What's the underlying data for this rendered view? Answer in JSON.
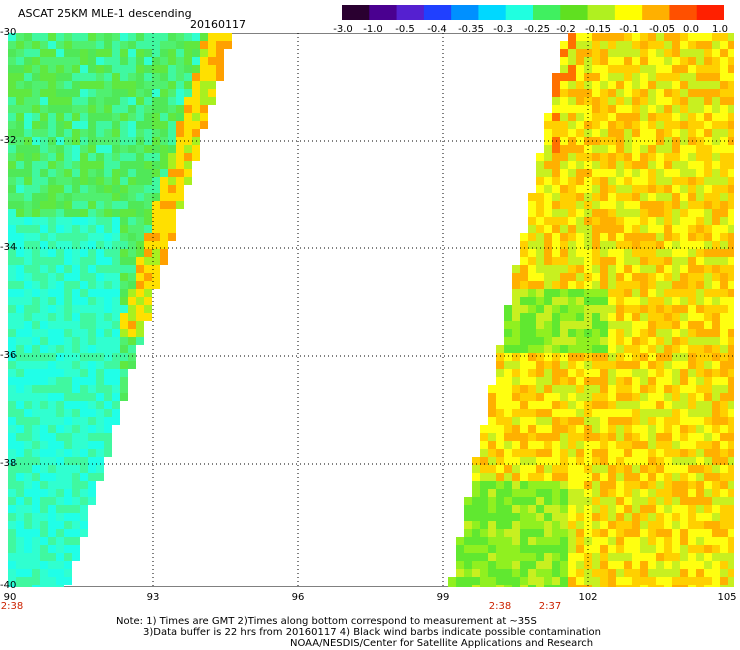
{
  "header": {
    "title": "ASCAT 25KM MLE-1 descending",
    "date": "20160117"
  },
  "colorbar": {
    "labels": [
      "-3.0",
      "-1.0",
      "-0.5",
      "-0.4",
      "-0.35",
      "-0.3",
      "-0.25",
      "-0.2",
      "-0.15",
      "-0.1",
      "-0.05",
      "0.0",
      "1.0"
    ],
    "colors": [
      "#2a0030",
      "#4a0090",
      "#5520d0",
      "#2040ff",
      "#0090ff",
      "#00d8ff",
      "#20ffe0",
      "#40f060",
      "#60e020",
      "#b0f020",
      "#ffff00",
      "#ffb000",
      "#ff5000",
      "#ff2000"
    ]
  },
  "axes": {
    "lat_labels": [
      "-30",
      "-32",
      "-34",
      "-36",
      "-38",
      "-40"
    ],
    "lon_labels": [
      "90",
      "93",
      "96",
      "99",
      "102",
      "105"
    ]
  },
  "times": [
    "2:38",
    "2:38",
    "2:37"
  ],
  "notes": [
    "Note: 1) Times are GMT 2)Times along bottom correspond to measurement at ~35S",
    "3)Data buffer is 22 hrs from 20160117 4) Black wind barbs indicate possible contamination",
    "NOAA/NESDIS/Center for Satellite Applications and Research"
  ]
}
